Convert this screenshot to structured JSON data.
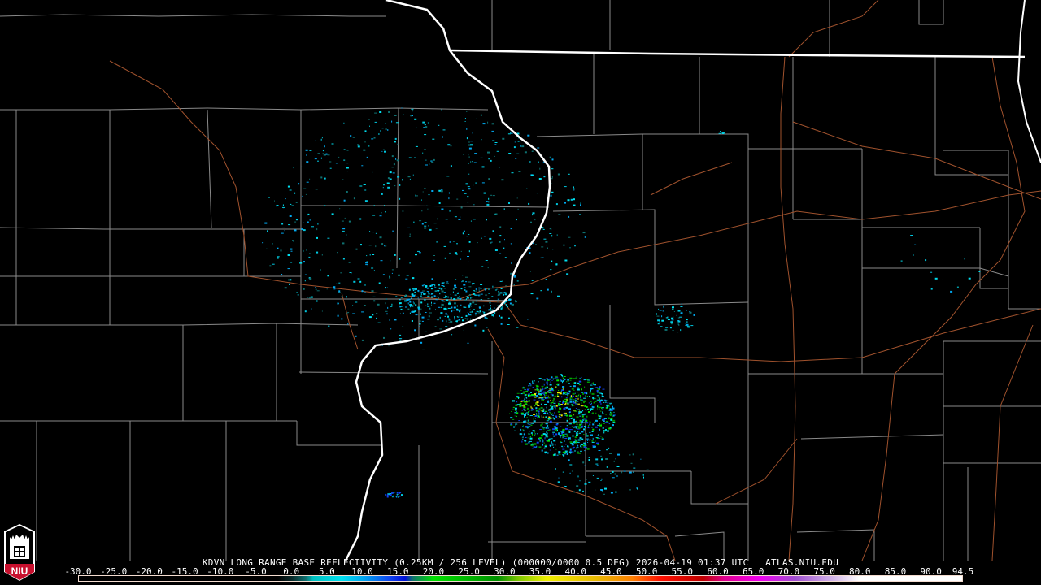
{
  "product": {
    "title": "KDVN LONG RANGE BASE REFLECTIVITY (0.25KM / 256 LEVEL) (000000/0000 0.5 DEG) 2026-04-19 01:37 UTC   ATLAS.NIU.EDU"
  },
  "logo": {
    "text": "NIU",
    "colors": {
      "red": "#c8102e",
      "white": "#ffffff"
    }
  },
  "colorbar": {
    "unit_range": [
      -30.0,
      94.5
    ],
    "tick_labels": [
      "-30.0",
      "-25.0",
      "-20.0",
      "-15.0",
      "-10.0",
      "-5.0",
      "0.0",
      "5.0",
      "10.0",
      "15.0",
      "20.0",
      "25.0",
      "30.0",
      "35.0",
      "40.0",
      "45.0",
      "50.0",
      "55.0",
      "60.0",
      "65.0",
      "70.0",
      "75.0",
      "80.0",
      "85.0",
      "90.0",
      "94.5"
    ],
    "stops": [
      {
        "value": -30,
        "color": "#000000"
      },
      {
        "value": -2,
        "color": "#000000"
      },
      {
        "value": 0,
        "color": "#0a2a2a"
      },
      {
        "value": 2,
        "color": "#0e7070"
      },
      {
        "value": 3,
        "color": "#00c0c0"
      },
      {
        "value": 7,
        "color": "#00e0f0"
      },
      {
        "value": 10,
        "color": "#00a8f0"
      },
      {
        "value": 14,
        "color": "#1040f0"
      },
      {
        "value": 16,
        "color": "#0010d8"
      },
      {
        "value": 17,
        "color": "#107070"
      },
      {
        "value": 20,
        "color": "#00e000"
      },
      {
        "value": 29,
        "color": "#009000"
      },
      {
        "value": 32,
        "color": "#80c800"
      },
      {
        "value": 36,
        "color": "#f0f000"
      },
      {
        "value": 43,
        "color": "#e8b800"
      },
      {
        "value": 48,
        "color": "#ff8000"
      },
      {
        "value": 52,
        "color": "#ff1000"
      },
      {
        "value": 58,
        "color": "#c00000"
      },
      {
        "value": 61,
        "color": "#e00090"
      },
      {
        "value": 66,
        "color": "#f000f0"
      },
      {
        "value": 71,
        "color": "#a050d0"
      },
      {
        "value": 76,
        "color": "#d0b0e8"
      },
      {
        "value": 80,
        "color": "#ffffff"
      },
      {
        "value": 94.5,
        "color": "#ffffff"
      }
    ]
  },
  "map_colors": {
    "county": "#8a8a8a",
    "state": "#ffffff",
    "road": "#a0522d",
    "echo": "#00c8e0"
  }
}
